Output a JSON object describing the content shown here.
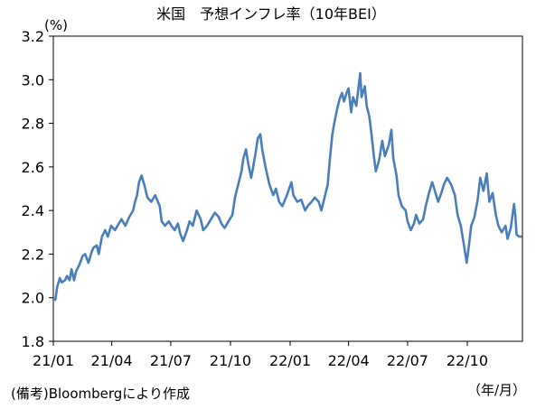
{
  "chart_data": {
    "type": "line",
    "title": "米国　予想インフレ率（10年BEI）",
    "y_unit": "(%)",
    "x_unit": "（年/月）",
    "source_note": "(備考)Bloombergにより作成",
    "ylim": [
      1.8,
      3.2
    ],
    "y_ticks": [
      "1.8",
      "2.0",
      "2.2",
      "2.4",
      "2.6",
      "2.8",
      "3.0",
      "3.2"
    ],
    "x_ticks": [
      "21/01",
      "21/04",
      "21/07",
      "21/10",
      "22/01",
      "22/04",
      "22/07",
      "22/10"
    ],
    "grid": false,
    "legend": "none",
    "series": [
      {
        "color": "#4a7ebb",
        "points": [
          [
            "2021-01-04",
            1.99
          ],
          [
            "2021-01-07",
            2.05
          ],
          [
            "2021-01-11",
            2.09
          ],
          [
            "2021-01-14",
            2.07
          ],
          [
            "2021-01-19",
            2.08
          ],
          [
            "2021-01-22",
            2.1
          ],
          [
            "2021-01-26",
            2.08
          ],
          [
            "2021-01-29",
            2.13
          ],
          [
            "2021-02-02",
            2.08
          ],
          [
            "2021-02-05",
            2.12
          ],
          [
            "2021-02-10",
            2.15
          ],
          [
            "2021-02-15",
            2.19
          ],
          [
            "2021-02-19",
            2.2
          ],
          [
            "2021-02-24",
            2.16
          ],
          [
            "2021-03-01",
            2.21
          ],
          [
            "2021-03-04",
            2.23
          ],
          [
            "2021-03-09",
            2.24
          ],
          [
            "2021-03-12",
            2.2
          ],
          [
            "2021-03-17",
            2.28
          ],
          [
            "2021-03-22",
            2.31
          ],
          [
            "2021-03-26",
            2.28
          ],
          [
            "2021-03-31",
            2.33
          ],
          [
            "2021-04-06",
            2.31
          ],
          [
            "2021-04-12",
            2.34
          ],
          [
            "2021-04-16",
            2.36
          ],
          [
            "2021-04-22",
            2.33
          ],
          [
            "2021-04-28",
            2.37
          ],
          [
            "2021-05-04",
            2.4
          ],
          [
            "2021-05-07",
            2.44
          ],
          [
            "2021-05-10",
            2.47
          ],
          [
            "2021-05-13",
            2.53
          ],
          [
            "2021-05-17",
            2.56
          ],
          [
            "2021-05-21",
            2.52
          ],
          [
            "2021-05-26",
            2.46
          ],
          [
            "2021-06-01",
            2.44
          ],
          [
            "2021-06-07",
            2.47
          ],
          [
            "2021-06-14",
            2.42
          ],
          [
            "2021-06-17",
            2.35
          ],
          [
            "2021-06-22",
            2.33
          ],
          [
            "2021-06-28",
            2.35
          ],
          [
            "2021-07-02",
            2.33
          ],
          [
            "2021-07-07",
            2.31
          ],
          [
            "2021-07-12",
            2.34
          ],
          [
            "2021-07-16",
            2.29
          ],
          [
            "2021-07-20",
            2.26
          ],
          [
            "2021-07-26",
            2.31
          ],
          [
            "2021-07-30",
            2.35
          ],
          [
            "2021-08-04",
            2.33
          ],
          [
            "2021-08-10",
            2.4
          ],
          [
            "2021-08-16",
            2.36
          ],
          [
            "2021-08-20",
            2.31
          ],
          [
            "2021-08-26",
            2.33
          ],
          [
            "2021-09-01",
            2.36
          ],
          [
            "2021-09-07",
            2.39
          ],
          [
            "2021-09-13",
            2.37
          ],
          [
            "2021-09-17",
            2.34
          ],
          [
            "2021-09-22",
            2.32
          ],
          [
            "2021-09-28",
            2.35
          ],
          [
            "2021-10-04",
            2.38
          ],
          [
            "2021-10-08",
            2.46
          ],
          [
            "2021-10-13",
            2.52
          ],
          [
            "2021-10-18",
            2.58
          ],
          [
            "2021-10-21",
            2.64
          ],
          [
            "2021-10-25",
            2.68
          ],
          [
            "2021-10-28",
            2.62
          ],
          [
            "2021-11-02",
            2.55
          ],
          [
            "2021-11-05",
            2.6
          ],
          [
            "2021-11-09",
            2.67
          ],
          [
            "2021-11-12",
            2.73
          ],
          [
            "2021-11-16",
            2.75
          ],
          [
            "2021-11-19",
            2.68
          ],
          [
            "2021-11-24",
            2.6
          ],
          [
            "2021-11-30",
            2.52
          ],
          [
            "2021-12-06",
            2.47
          ],
          [
            "2021-12-10",
            2.5
          ],
          [
            "2021-12-15",
            2.44
          ],
          [
            "2021-12-20",
            2.42
          ],
          [
            "2021-12-27",
            2.47
          ],
          [
            "2022-01-03",
            2.53
          ],
          [
            "2022-01-06",
            2.47
          ],
          [
            "2022-01-12",
            2.44
          ],
          [
            "2022-01-18",
            2.45
          ],
          [
            "2022-01-24",
            2.4
          ],
          [
            "2022-01-28",
            2.42
          ],
          [
            "2022-02-03",
            2.44
          ],
          [
            "2022-02-08",
            2.46
          ],
          [
            "2022-02-14",
            2.44
          ],
          [
            "2022-02-18",
            2.4
          ],
          [
            "2022-02-23",
            2.46
          ],
          [
            "2022-02-28",
            2.52
          ],
          [
            "2022-03-03",
            2.63
          ],
          [
            "2022-03-07",
            2.75
          ],
          [
            "2022-03-10",
            2.8
          ],
          [
            "2022-03-14",
            2.86
          ],
          [
            "2022-03-18",
            2.91
          ],
          [
            "2022-03-22",
            2.94
          ],
          [
            "2022-03-25",
            2.9
          ],
          [
            "2022-03-29",
            2.94
          ],
          [
            "2022-04-01",
            2.96
          ],
          [
            "2022-04-05",
            2.85
          ],
          [
            "2022-04-08",
            2.92
          ],
          [
            "2022-04-13",
            2.88
          ],
          [
            "2022-04-19",
            3.03
          ],
          [
            "2022-04-21",
            2.92
          ],
          [
            "2022-04-26",
            2.97
          ],
          [
            "2022-04-29",
            2.88
          ],
          [
            "2022-05-03",
            2.83
          ],
          [
            "2022-05-06",
            2.76
          ],
          [
            "2022-05-10",
            2.65
          ],
          [
            "2022-05-13",
            2.58
          ],
          [
            "2022-05-18",
            2.63
          ],
          [
            "2022-05-23",
            2.72
          ],
          [
            "2022-05-27",
            2.65
          ],
          [
            "2022-06-02",
            2.7
          ],
          [
            "2022-06-06",
            2.77
          ],
          [
            "2022-06-09",
            2.64
          ],
          [
            "2022-06-14",
            2.56
          ],
          [
            "2022-06-17",
            2.47
          ],
          [
            "2022-06-22",
            2.42
          ],
          [
            "2022-06-28",
            2.4
          ],
          [
            "2022-07-01",
            2.35
          ],
          [
            "2022-07-06",
            2.31
          ],
          [
            "2022-07-11",
            2.34
          ],
          [
            "2022-07-14",
            2.38
          ],
          [
            "2022-07-19",
            2.34
          ],
          [
            "2022-07-25",
            2.36
          ],
          [
            "2022-07-29",
            2.42
          ],
          [
            "2022-08-03",
            2.48
          ],
          [
            "2022-08-08",
            2.53
          ],
          [
            "2022-08-12",
            2.49
          ],
          [
            "2022-08-17",
            2.44
          ],
          [
            "2022-08-22",
            2.48
          ],
          [
            "2022-08-26",
            2.52
          ],
          [
            "2022-08-31",
            2.55
          ],
          [
            "2022-09-06",
            2.52
          ],
          [
            "2022-09-12",
            2.47
          ],
          [
            "2022-09-16",
            2.38
          ],
          [
            "2022-09-21",
            2.33
          ],
          [
            "2022-09-27",
            2.22
          ],
          [
            "2022-09-30",
            2.16
          ],
          [
            "2022-10-04",
            2.25
          ],
          [
            "2022-10-07",
            2.33
          ],
          [
            "2022-10-12",
            2.37
          ],
          [
            "2022-10-17",
            2.45
          ],
          [
            "2022-10-21",
            2.55
          ],
          [
            "2022-10-26",
            2.49
          ],
          [
            "2022-10-31",
            2.57
          ],
          [
            "2022-11-04",
            2.44
          ],
          [
            "2022-11-09",
            2.48
          ],
          [
            "2022-11-14",
            2.38
          ],
          [
            "2022-11-18",
            2.33
          ],
          [
            "2022-11-23",
            2.3
          ],
          [
            "2022-11-29",
            2.33
          ],
          [
            "2022-12-02",
            2.27
          ],
          [
            "2022-12-07",
            2.32
          ],
          [
            "2022-12-12",
            2.43
          ],
          [
            "2022-12-14",
            2.38
          ],
          [
            "2022-12-16",
            2.29
          ],
          [
            "2022-12-20",
            2.28
          ],
          [
            "2022-12-23",
            2.28
          ]
        ]
      }
    ]
  }
}
